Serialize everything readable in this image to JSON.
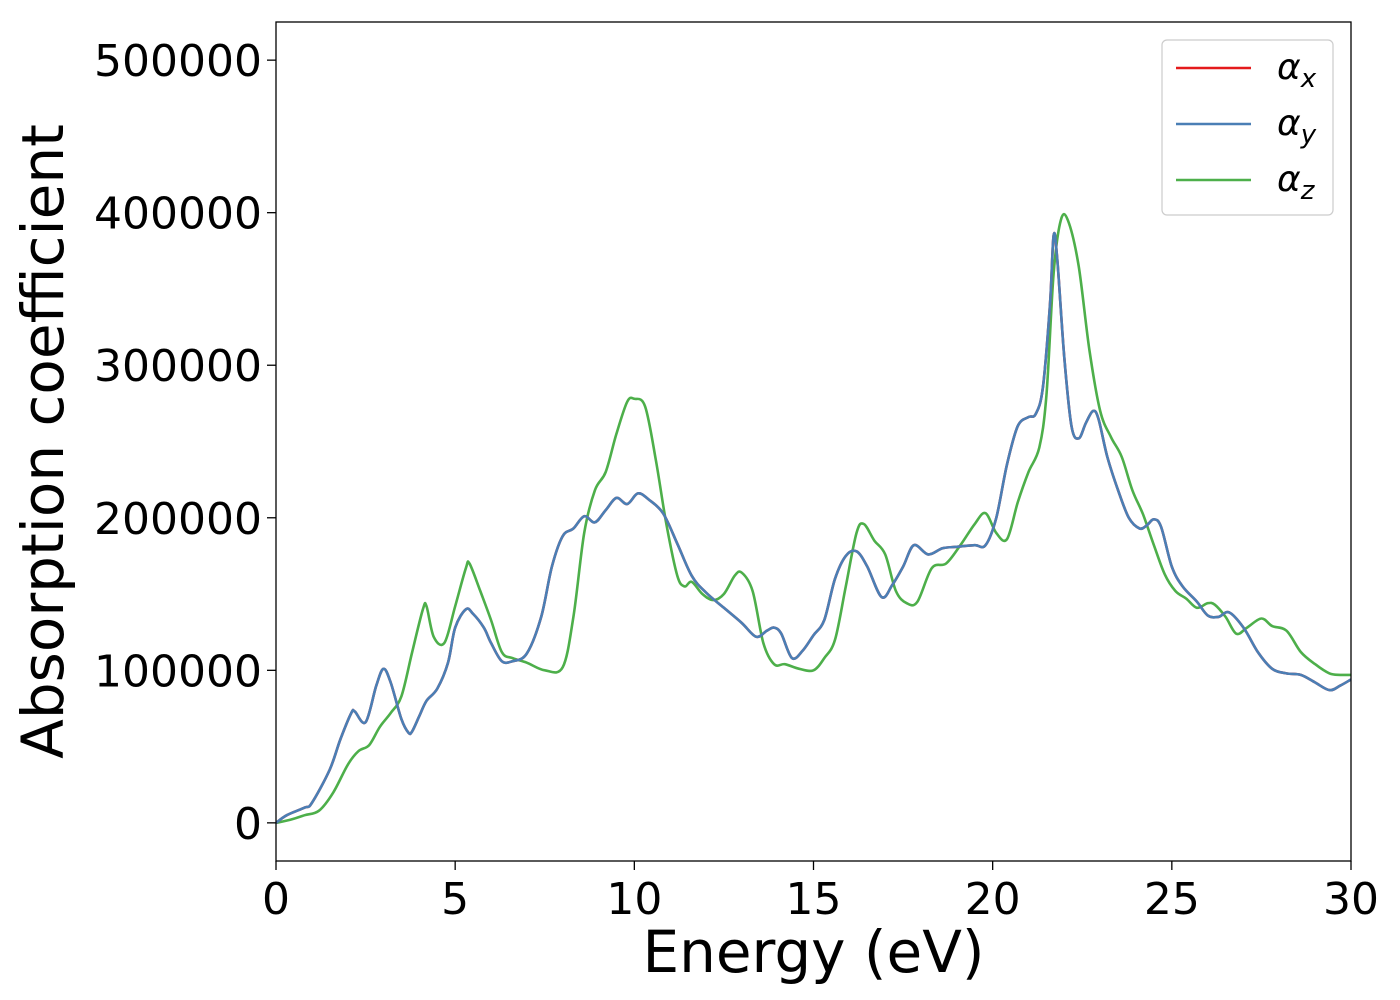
{
  "chart_data": {
    "type": "line",
    "xlabel": "Energy (eV)",
    "ylabel": "Absorption coefficient",
    "xlim": [
      0,
      30
    ],
    "ylim": [
      -25000,
      525000
    ],
    "xticks": [
      0,
      5,
      10,
      15,
      20,
      25,
      30
    ],
    "yticks": [
      0,
      100000,
      200000,
      300000,
      400000,
      500000
    ],
    "grid": false,
    "legend_position": "top-right",
    "series": [
      {
        "name": "α",
        "sub": "x",
        "color": "#e41a1c",
        "x": [
          0,
          0.3,
          0.8,
          1.0,
          1.5,
          1.8,
          2.1,
          2.2,
          2.5,
          2.8,
          3.0,
          3.2,
          3.5,
          3.7,
          3.8,
          4.0,
          4.2,
          4.5,
          4.8,
          5.0,
          5.3,
          5.5,
          5.8,
          6.0,
          6.3,
          6.6,
          7.0,
          7.4,
          7.7,
          8.0,
          8.3,
          8.6,
          8.9,
          9.2,
          9.5,
          9.8,
          10.1,
          10.4,
          10.8,
          11.2,
          11.6,
          12.0,
          12.5,
          13.0,
          13.4,
          13.7,
          13.9,
          14.1,
          14.4,
          14.7,
          15.0,
          15.3,
          15.6,
          15.9,
          16.2,
          16.5,
          16.9,
          17.2,
          17.5,
          17.8,
          18.2,
          18.6,
          19.0,
          19.5,
          19.8,
          20.1,
          20.4,
          20.7,
          21.0,
          21.2,
          21.4,
          21.6,
          21.7,
          21.8,
          22.0,
          22.2,
          22.4,
          22.6,
          22.8,
          22.95,
          23.2,
          23.5,
          23.8,
          24.1,
          24.3,
          24.5,
          24.7,
          25.0,
          25.3,
          25.7,
          26.0,
          26.3,
          26.6,
          27.0,
          27.4,
          27.8,
          28.2,
          28.6,
          29.0,
          29.4,
          29.7,
          30.0
        ],
        "values": [
          0,
          5000,
          10000,
          13000,
          35000,
          55000,
          72000,
          73000,
          66000,
          90000,
          101000,
          92000,
          68000,
          59000,
          60000,
          70000,
          80000,
          88000,
          105000,
          128000,
          140000,
          137000,
          128000,
          118000,
          106000,
          106000,
          111000,
          135000,
          168000,
          188000,
          193000,
          201000,
          197000,
          205000,
          213000,
          209000,
          216000,
          212000,
          203000,
          183000,
          162000,
          151000,
          141000,
          131000,
          122000,
          126000,
          128000,
          124000,
          108000,
          113000,
          123000,
          133000,
          160000,
          175000,
          178000,
          168000,
          148000,
          156000,
          168000,
          182000,
          176000,
          180000,
          181000,
          182000,
          182000,
          200000,
          235000,
          260000,
          266000,
          268000,
          285000,
          340000,
          385000,
          370000,
          305000,
          260000,
          252000,
          262000,
          270000,
          265000,
          240000,
          218000,
          200000,
          193000,
          195000,
          199000,
          194000,
          168000,
          155000,
          145000,
          136000,
          135000,
          138000,
          128000,
          112000,
          101000,
          98000,
          97000,
          92000,
          87000,
          90000,
          94000
        ]
      },
      {
        "name": "α",
        "sub": "y",
        "color": "#4a7fb5",
        "x": [
          0,
          0.3,
          0.8,
          1.0,
          1.5,
          1.8,
          2.1,
          2.2,
          2.5,
          2.8,
          3.0,
          3.2,
          3.5,
          3.7,
          3.8,
          4.0,
          4.2,
          4.5,
          4.8,
          5.0,
          5.3,
          5.5,
          5.8,
          6.0,
          6.3,
          6.6,
          7.0,
          7.4,
          7.7,
          8.0,
          8.3,
          8.6,
          8.9,
          9.2,
          9.5,
          9.8,
          10.1,
          10.4,
          10.8,
          11.2,
          11.6,
          12.0,
          12.5,
          13.0,
          13.4,
          13.7,
          13.9,
          14.1,
          14.4,
          14.7,
          15.0,
          15.3,
          15.6,
          15.9,
          16.2,
          16.5,
          16.9,
          17.2,
          17.5,
          17.8,
          18.2,
          18.6,
          19.0,
          19.5,
          19.8,
          20.1,
          20.4,
          20.7,
          21.0,
          21.2,
          21.4,
          21.6,
          21.7,
          21.8,
          22.0,
          22.2,
          22.4,
          22.6,
          22.8,
          22.95,
          23.2,
          23.5,
          23.8,
          24.1,
          24.3,
          24.5,
          24.7,
          25.0,
          25.3,
          25.7,
          26.0,
          26.3,
          26.6,
          27.0,
          27.4,
          27.8,
          28.2,
          28.6,
          29.0,
          29.4,
          29.7,
          30.0
        ],
        "values": [
          0,
          5000,
          10000,
          13000,
          35000,
          55000,
          72000,
          73000,
          66000,
          90000,
          101000,
          92000,
          68000,
          59000,
          60000,
          70000,
          80000,
          88000,
          105000,
          128000,
          140000,
          137000,
          128000,
          118000,
          106000,
          106000,
          111000,
          135000,
          168000,
          188000,
          193000,
          201000,
          197000,
          205000,
          213000,
          209000,
          216000,
          212000,
          203000,
          183000,
          162000,
          151000,
          141000,
          131000,
          122000,
          126000,
          128000,
          124000,
          108000,
          113000,
          123000,
          133000,
          160000,
          175000,
          178000,
          168000,
          148000,
          156000,
          168000,
          182000,
          176000,
          180000,
          181000,
          182000,
          182000,
          200000,
          235000,
          260000,
          266000,
          268000,
          285000,
          340000,
          385000,
          370000,
          305000,
          260000,
          252000,
          262000,
          270000,
          265000,
          240000,
          218000,
          200000,
          193000,
          195000,
          199000,
          194000,
          168000,
          155000,
          145000,
          136000,
          135000,
          138000,
          128000,
          112000,
          101000,
          98000,
          97000,
          92000,
          87000,
          90000,
          94000
        ]
      },
      {
        "name": "α",
        "sub": "z",
        "color": "#4daf4a",
        "x": [
          0,
          0.4,
          0.8,
          1.2,
          1.6,
          2.0,
          2.3,
          2.6,
          2.9,
          3.2,
          3.5,
          3.8,
          4.1,
          4.2,
          4.4,
          4.7,
          5.0,
          5.3,
          5.4,
          5.7,
          6.0,
          6.3,
          6.6,
          7.0,
          7.5,
          8.0,
          8.3,
          8.6,
          8.9,
          9.2,
          9.5,
          9.8,
          10.0,
          10.3,
          10.6,
          10.9,
          11.2,
          11.4,
          11.6,
          11.9,
          12.2,
          12.5,
          12.8,
          13.0,
          13.3,
          13.6,
          13.9,
          14.2,
          14.6,
          15.0,
          15.3,
          15.6,
          15.9,
          16.2,
          16.4,
          16.7,
          17.0,
          17.3,
          17.6,
          17.9,
          18.3,
          18.7,
          19.1,
          19.5,
          19.8,
          20.1,
          20.4,
          20.7,
          21.0,
          21.3,
          21.5,
          21.7,
          21.9,
          22.1,
          22.4,
          22.7,
          23.0,
          23.3,
          23.6,
          23.9,
          24.2,
          24.5,
          24.8,
          25.1,
          25.4,
          25.7,
          26.0,
          26.2,
          26.5,
          26.8,
          27.1,
          27.5,
          27.8,
          28.2,
          28.6,
          29.0,
          29.4,
          29.7,
          30.0
        ],
        "values": [
          0,
          2000,
          5000,
          8000,
          20000,
          38000,
          47000,
          51000,
          63000,
          72000,
          83000,
          112000,
          140000,
          142000,
          122000,
          118000,
          142000,
          167000,
          170000,
          152000,
          133000,
          112000,
          108000,
          105000,
          100000,
          102000,
          135000,
          190000,
          218000,
          230000,
          255000,
          276000,
          278000,
          273000,
          238000,
          195000,
          162000,
          155000,
          158000,
          150000,
          146000,
          150000,
          162000,
          164000,
          152000,
          118000,
          104000,
          104000,
          101000,
          100000,
          108000,
          120000,
          155000,
          190000,
          196000,
          185000,
          176000,
          152000,
          144000,
          145000,
          167000,
          170000,
          182000,
          196000,
          203000,
          190000,
          186000,
          210000,
          230000,
          246000,
          280000,
          360000,
          395000,
          395000,
          365000,
          310000,
          270000,
          253000,
          240000,
          218000,
          202000,
          182000,
          163000,
          152000,
          147000,
          141000,
          144000,
          143000,
          135000,
          124000,
          128000,
          134000,
          129000,
          126000,
          112000,
          104000,
          98000,
          97000,
          97000
        ]
      }
    ]
  }
}
